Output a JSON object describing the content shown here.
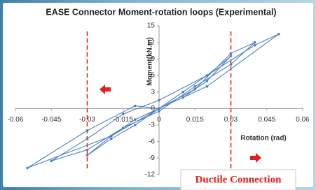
{
  "chart_data": {
    "type": "line",
    "title": "EASE Connector Moment-rotation loops (Experimental)",
    "x_label": "Rotation (rad)",
    "y_label": "Moment(kN.m)",
    "annotation": "Ductile Connection",
    "color": "#4f81bd",
    "reference_color": "#e0201c",
    "reference_x": [
      -0.03,
      0.03
    ],
    "xlim": [
      -0.06,
      0.06
    ],
    "ylim": [
      -12,
      15
    ],
    "xticks": [
      -0.06,
      -0.045,
      -0.03,
      -0.015,
      0,
      0.015,
      0.03,
      0.045,
      0.06
    ],
    "yticks": [
      -12,
      -9,
      -6,
      -3,
      0,
      3,
      6,
      9,
      12,
      15
    ],
    "x": [
      0,
      0.01,
      0.02,
      0.03,
      0.02,
      0.01,
      0,
      -0.01,
      -0.02,
      -0.03,
      -0.02,
      -0.01,
      0,
      0.015,
      0.03,
      0.04,
      0.03,
      0.015,
      0,
      -0.015,
      -0.03,
      -0.045,
      -0.03,
      -0.015,
      0,
      0.02,
      0.04,
      0.05,
      0.02,
      0,
      -0.02,
      -0.055,
      -0.03,
      -0.01,
      0
    ],
    "values": [
      0,
      2,
      5,
      9.5,
      6,
      3,
      0,
      -2,
      -5,
      -8.5,
      -5.5,
      -3,
      0,
      3.5,
      10,
      12,
      8,
      4,
      -0.5,
      -3.5,
      -7.5,
      -9.5,
      -5.5,
      -1,
      1.5,
      6,
      11.5,
      13.5,
      4,
      0,
      -5,
      -10.8,
      -4,
      0.5,
      0
    ]
  }
}
